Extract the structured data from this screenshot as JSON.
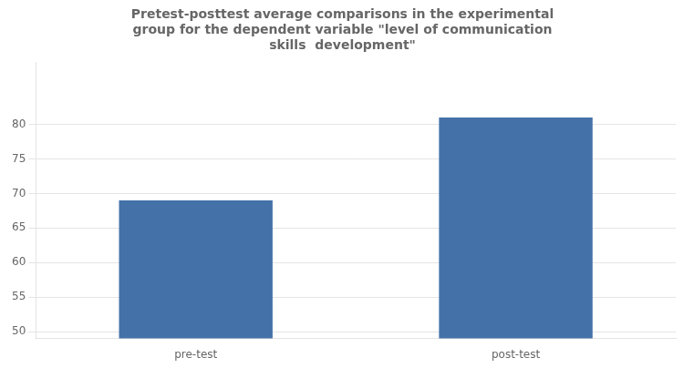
{
  "chart_data": {
    "type": "bar",
    "title": "Pretest-posttest average comparisons in the experimental\ngroup for the dependent variable \"level of communication\nskills  development\"",
    "categories": [
      "pre-test",
      "post-test"
    ],
    "values": [
      69,
      81
    ],
    "color": "#4472a8",
    "ylim": [
      49,
      89
    ],
    "yticks": [
      50,
      55,
      60,
      65,
      70,
      75,
      80
    ],
    "grid": true
  }
}
